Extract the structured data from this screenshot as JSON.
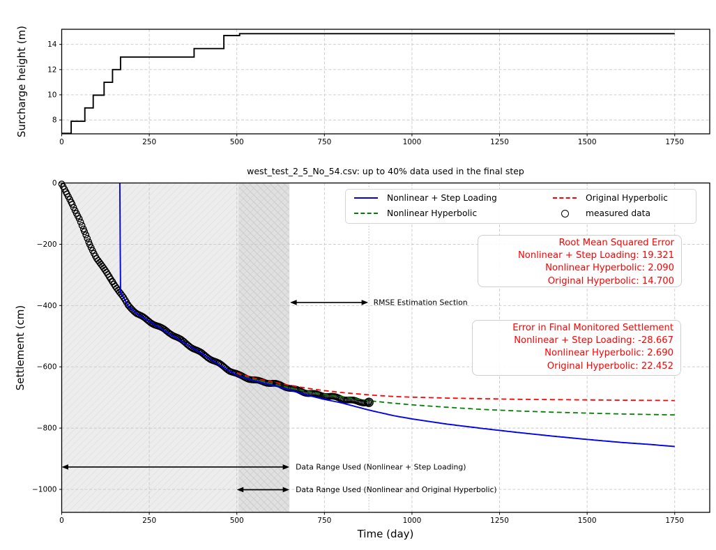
{
  "figure": {
    "background": "#ffffff"
  },
  "colors": {
    "nonlinear_step_loading": "#0000ee",
    "nonlinear_hyperbolic": "#008000",
    "original_hyperbolic": "#ff0000",
    "measured": "#000000",
    "box_text": "#ff0000",
    "grid": "#c8c8c8",
    "shade_light": "#ededed",
    "shade_dark": "#e0e0e0",
    "hatch_light": "#dbdbdb",
    "hatch_dark": "#cccccc"
  },
  "chart_data": [
    {
      "type": "line",
      "subtype": "step",
      "title": "",
      "xlabel": "",
      "ylabel": "Surcharge height (m)",
      "xlim": [
        0,
        1850
      ],
      "ylim": [
        6.9,
        15.2
      ],
      "xticks": [
        0,
        250,
        500,
        750,
        1000,
        1250,
        1500,
        1750
      ],
      "yticks": [
        8,
        10,
        12,
        14
      ],
      "grid": "dashed",
      "series": [
        {
          "name": "surcharge-height",
          "color": "#000000",
          "style": "step",
          "points": [
            [
              0,
              6.94
            ],
            [
              27,
              7.9
            ],
            [
              66,
              8.96
            ],
            [
              90,
              9.97
            ],
            [
              121,
              10.99
            ],
            [
              145,
              12.0
            ],
            [
              168,
              13.0
            ],
            [
              378,
              13.67
            ],
            [
              463,
              14.7
            ],
            [
              508,
              14.85
            ],
            [
              1750,
              14.85
            ]
          ]
        }
      ]
    },
    {
      "type": "line+scatter",
      "title": "west_test_2_5_No_54.csv: up to 40% data used in the final step",
      "xlabel": "Time (day)",
      "ylabel": "Settlement (cm)",
      "xlim": [
        0,
        1850
      ],
      "ylim": [
        -1075,
        0
      ],
      "xticks": [
        0,
        250,
        500,
        750,
        1000,
        1250,
        1500,
        1750
      ],
      "yticks": [
        0,
        -200,
        -400,
        -600,
        -800,
        -1000
      ],
      "grid": "dashed",
      "legend_position": "upper right",
      "legend": [
        {
          "label": "Nonlinear + Step Loading",
          "color": "#0000ee",
          "style": "solid"
        },
        {
          "label": "Nonlinear Hyperbolic",
          "color": "#008000",
          "style": "dashed"
        },
        {
          "label": "Original Hyperbolic",
          "color": "#ff0000",
          "style": "dashed"
        },
        {
          "label": "measured data",
          "color": "#000000",
          "style": "circle"
        }
      ],
      "shaded_regions": [
        {
          "name": "data-range-step-loading",
          "x0": 0,
          "x1": 650,
          "hatch": "/"
        },
        {
          "name": "data-range-hyperbolic",
          "x0": 505,
          "x1": 650,
          "hatch": "x"
        }
      ],
      "vline_day": 877,
      "series": [
        {
          "name": "measured data",
          "color": "#000000",
          "style": "circles",
          "points": [
            [
              0,
              -5
            ],
            [
              15,
              -40
            ],
            [
              30,
              -70
            ],
            [
              50,
              -115
            ],
            [
              65,
              -160
            ],
            [
              80,
              -200
            ],
            [
              100,
              -243
            ],
            [
              120,
              -280
            ],
            [
              145,
              -322
            ],
            [
              165,
              -358
            ],
            [
              190,
              -400
            ],
            [
              215,
              -425
            ],
            [
              250,
              -450
            ],
            [
              300,
              -485
            ],
            [
              350,
              -520
            ],
            [
              400,
              -555
            ],
            [
              450,
              -592
            ],
            [
              480,
              -614
            ],
            [
              505,
              -627
            ],
            [
              550,
              -642
            ],
            [
              612,
              -658
            ],
            [
              652,
              -670
            ],
            [
              700,
              -683
            ],
            [
              745,
              -694
            ],
            [
              800,
              -705
            ],
            [
              840,
              -711
            ],
            [
              877,
              -716
            ]
          ]
        },
        {
          "name": "Nonlinear + Step Loading",
          "color": "#0000ee",
          "style": "solid",
          "points": [
            [
              166,
              0
            ],
            [
              167,
              -200
            ],
            [
              168,
              -355
            ],
            [
              190,
              -402
            ],
            [
              215,
              -427
            ],
            [
              250,
              -452
            ],
            [
              300,
              -487
            ],
            [
              350,
              -522
            ],
            [
              400,
              -557
            ],
            [
              450,
              -594
            ],
            [
              480,
              -615
            ],
            [
              505,
              -630
            ],
            [
              550,
              -646
            ],
            [
              612,
              -663
            ],
            [
              652,
              -676
            ],
            [
              700,
              -692
            ],
            [
              745,
              -705
            ],
            [
              800,
              -718
            ],
            [
              880,
              -742
            ],
            [
              950,
              -760
            ],
            [
              1000,
              -770
            ],
            [
              1100,
              -787
            ],
            [
              1200,
              -801
            ],
            [
              1300,
              -814
            ],
            [
              1400,
              -826
            ],
            [
              1500,
              -837
            ],
            [
              1600,
              -847
            ],
            [
              1675,
              -853
            ],
            [
              1750,
              -860
            ]
          ]
        },
        {
          "name": "Nonlinear Hyperbolic",
          "color": "#008000",
          "style": "dashed",
          "points": [
            [
              500,
              -622
            ],
            [
              550,
              -641
            ],
            [
              612,
              -658
            ],
            [
              652,
              -669
            ],
            [
              700,
              -680
            ],
            [
              745,
              -689
            ],
            [
              800,
              -698
            ],
            [
              880,
              -711
            ],
            [
              950,
              -719
            ],
            [
              1000,
              -724
            ],
            [
              1100,
              -732
            ],
            [
              1200,
              -739
            ],
            [
              1300,
              -744
            ],
            [
              1400,
              -748
            ],
            [
              1500,
              -751
            ],
            [
              1600,
              -754
            ],
            [
              1750,
              -757
            ]
          ]
        },
        {
          "name": "Original Hyperbolic",
          "color": "#ff0000",
          "style": "dashed",
          "points": [
            [
              500,
              -620
            ],
            [
              550,
              -637
            ],
            [
              612,
              -652
            ],
            [
              652,
              -661
            ],
            [
              700,
              -670
            ],
            [
              745,
              -677
            ],
            [
              800,
              -684
            ],
            [
              880,
              -692
            ],
            [
              950,
              -697
            ],
            [
              1000,
              -699
            ],
            [
              1100,
              -702
            ],
            [
              1200,
              -704
            ],
            [
              1300,
              -706
            ],
            [
              1400,
              -707
            ],
            [
              1500,
              -708
            ],
            [
              1600,
              -709
            ],
            [
              1750,
              -710
            ]
          ]
        }
      ],
      "annotations": [
        {
          "label": "RMSE Estimation Section",
          "x0": 652,
          "x1": 875,
          "y": -390,
          "label_x": 890
        },
        {
          "label": "Data Range Used (Nonlinear + Step Loading)",
          "x0": 0,
          "x1": 650,
          "y": -927,
          "label_x": 668
        },
        {
          "label": "Data Range Used (Nonlinear and Original Hyperbolic)",
          "x0": 500,
          "x1": 650,
          "y": -1001,
          "label_x": 668
        }
      ],
      "text_boxes": [
        {
          "name": "rmse",
          "lines": [
            "Root Mean Squared Error",
            "Nonlinear + Step Loading: 19.321",
            "Nonlinear Hyperbolic: 2.090",
            "Original Hyperbolic: 14.700"
          ]
        },
        {
          "name": "final-error",
          "lines": [
            "Error in Final Monitored Settlement",
            "Nonlinear + Step Loading: -28.667",
            "Nonlinear Hyperbolic: 2.690",
            "Original Hyperbolic: 22.452"
          ]
        }
      ]
    }
  ]
}
